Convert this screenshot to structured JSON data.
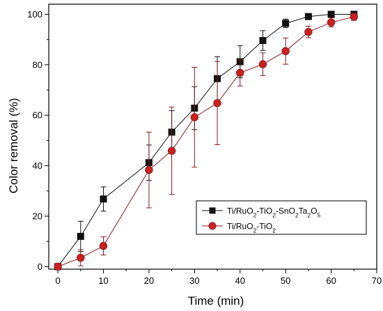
{
  "chart_data": {
    "type": "line",
    "title": "",
    "xlabel": "Time (min)",
    "ylabel": "Color removal (%)",
    "xlim": [
      -2,
      70
    ],
    "ylim": [
      -1,
      104
    ],
    "xticks": [
      0,
      10,
      20,
      30,
      40,
      50,
      60,
      70
    ],
    "yticks": [
      0,
      20,
      40,
      60,
      80,
      100
    ],
    "grid": false,
    "legend_position": "lower-right",
    "series": [
      {
        "name_parts": [
          [
            "Ti/RuO",
            ""
          ],
          [
            "2",
            "sub"
          ],
          [
            "-TiO",
            ""
          ],
          [
            "2",
            "sub"
          ],
          [
            "-SnO",
            ""
          ],
          [
            "2",
            "sub"
          ],
          [
            "Ta",
            ""
          ],
          [
            "2",
            "sub"
          ],
          [
            "O",
            ""
          ],
          [
            "5",
            "sub"
          ]
        ],
        "marker": "square",
        "marker_color": "#111111",
        "line_color": "#111111",
        "x": [
          0,
          5,
          10,
          20,
          25,
          30,
          35,
          40,
          45,
          50,
          55,
          60,
          65
        ],
        "y": [
          0,
          12,
          26.8,
          41.2,
          53.3,
          62.8,
          74.5,
          81.2,
          89.6,
          96.4,
          99.1,
          100,
          100
        ],
        "err": [
          0.3,
          6,
          4.8,
          7,
          8.5,
          8.5,
          8.7,
          6.4,
          3.9,
          1.7,
          0.5,
          0.9,
          1.1
        ]
      },
      {
        "name_parts": [
          [
            "Ti/RuO",
            ""
          ],
          [
            "2",
            "sub"
          ],
          [
            "-TiO",
            ""
          ],
          [
            "2",
            "sub"
          ]
        ],
        "marker": "circle",
        "marker_color": "#cc2020",
        "marker_edge": "#8b1a1a",
        "line_color": "#8b1a1a",
        "x": [
          0,
          5,
          10,
          20,
          25,
          30,
          35,
          40,
          45,
          50,
          55,
          60,
          65
        ],
        "y": [
          0,
          3.5,
          8.2,
          38.3,
          45.9,
          59.2,
          64.8,
          76.8,
          80.2,
          85.4,
          93,
          96.8,
          99
        ],
        "err": [
          0.3,
          3.2,
          3.6,
          15,
          17.3,
          19.8,
          16.5,
          5.2,
          4.5,
          5.2,
          2.3,
          1.8,
          1.4
        ]
      }
    ]
  }
}
